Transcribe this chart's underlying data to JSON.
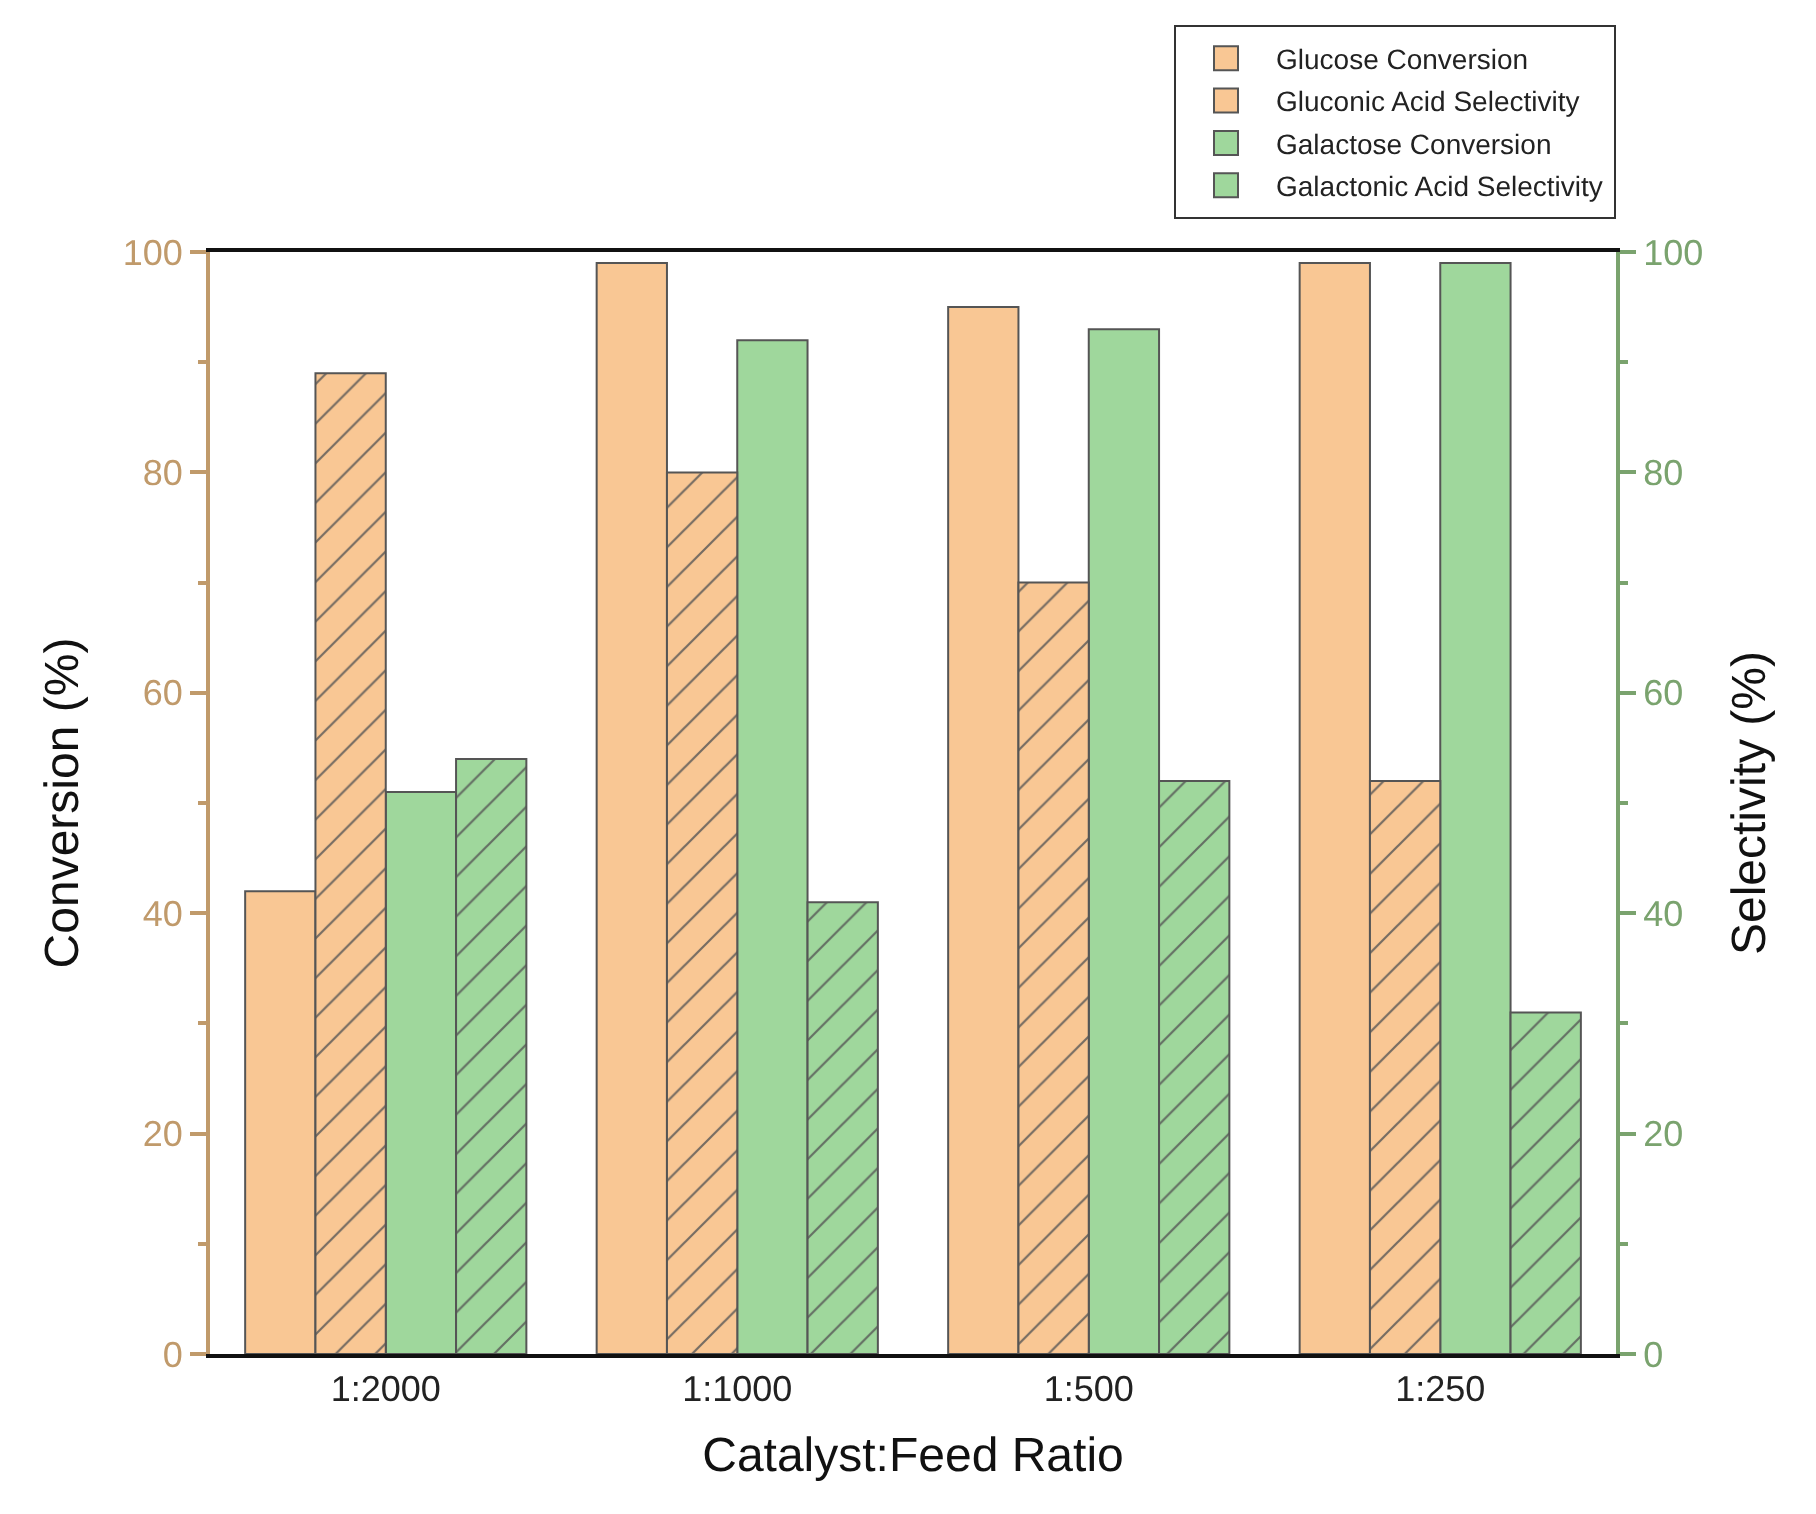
{
  "chart_data": {
    "type": "bar",
    "xlabel": "Catalyst:Feed Ratio",
    "ylabel": "Conversion (%)",
    "y2label": "Selectivity (%)",
    "categories": [
      "1:2000",
      "1:1000",
      "1:500",
      "1:250"
    ],
    "series": [
      {
        "name": "Glucose Conversion",
        "color": "#f9c794",
        "values": [
          42,
          99,
          95,
          99
        ]
      },
      {
        "name": "Gluconic Acid Selectivity",
        "color": "#f9c794",
        "values": [
          89,
          80,
          70,
          52
        ],
        "axis": "y2"
      },
      {
        "name": "Galactose Conversion",
        "color": "#9fd79c",
        "values": [
          51,
          92,
          93,
          99
        ]
      },
      {
        "name": "Galactonic Acid Selectivity",
        "color": "#9fd79c",
        "values": [
          54,
          41,
          52,
          31
        ],
        "axis": "y2"
      }
    ],
    "ylim": [
      0,
      100
    ],
    "yticks": [
      0,
      20,
      40,
      60,
      80,
      100
    ],
    "y2lim": [
      0,
      100
    ],
    "y2ticks": [
      0,
      20,
      40,
      60,
      80,
      100
    ],
    "legend": "top right"
  }
}
